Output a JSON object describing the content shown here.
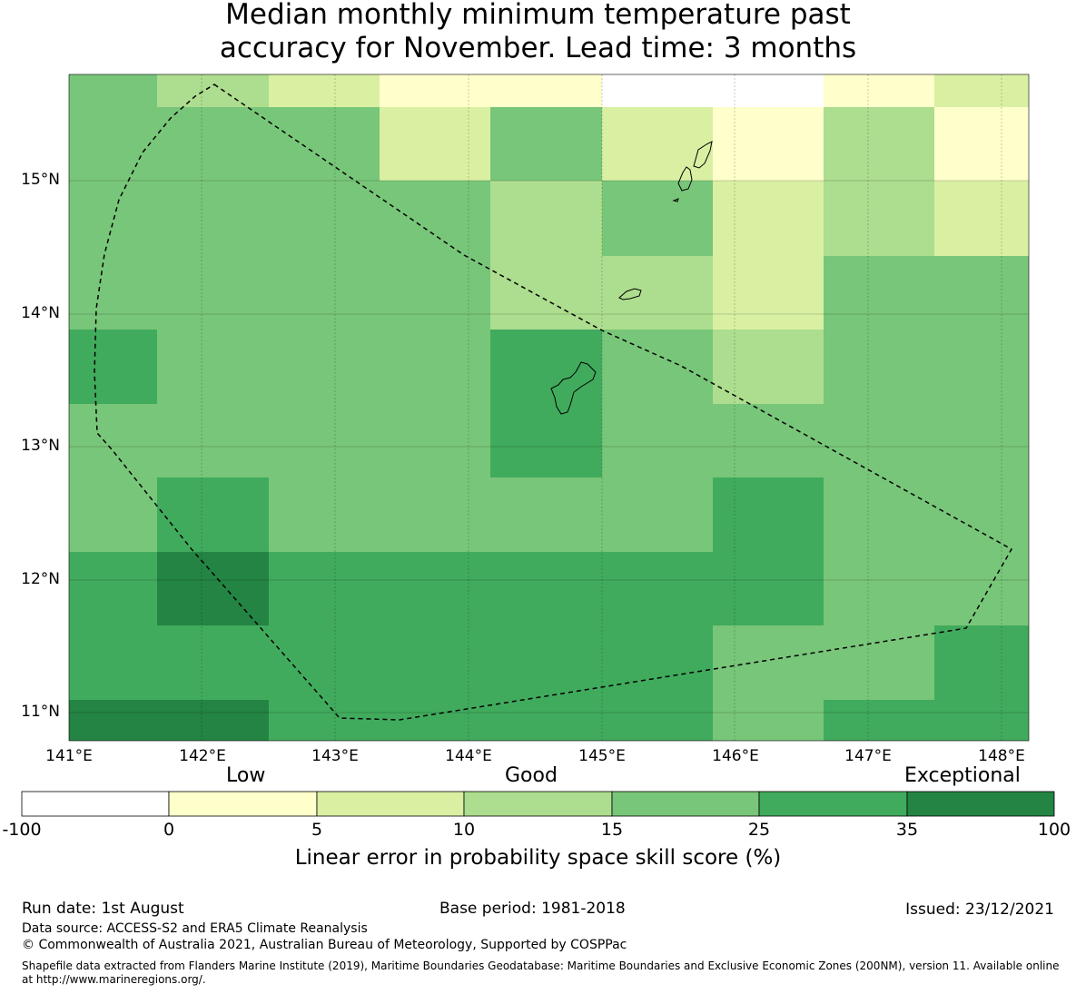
{
  "title_line1": "Median monthly minimum temperature past",
  "title_line2": "accuracy for November. Lead time: 3 months",
  "map": {
    "lon_ticks": [
      "141°E",
      "142°E",
      "143°E",
      "144°E",
      "145°E",
      "146°E",
      "147°E",
      "148°E"
    ],
    "lat_ticks": [
      "15°N",
      "14°N",
      "13°N",
      "12°N",
      "11°N"
    ],
    "grid_rows": [
      [
        4,
        3,
        2,
        1,
        1,
        0,
        0,
        1,
        2
      ],
      [
        4,
        4,
        4,
        2,
        4,
        2,
        1,
        3,
        1
      ],
      [
        4,
        4,
        4,
        4,
        3,
        4,
        2,
        3,
        2
      ],
      [
        4,
        4,
        4,
        4,
        3,
        3,
        2,
        4,
        4
      ],
      [
        5,
        4,
        4,
        4,
        5,
        4,
        3,
        4,
        4
      ],
      [
        4,
        4,
        4,
        4,
        5,
        4,
        4,
        4,
        4
      ],
      [
        4,
        5,
        4,
        4,
        4,
        4,
        5,
        4,
        4
      ],
      [
        5,
        6,
        5,
        5,
        5,
        5,
        5,
        4,
        4
      ],
      [
        5,
        5,
        5,
        5,
        5,
        5,
        4,
        4,
        5
      ],
      [
        6,
        6,
        5,
        5,
        5,
        5,
        4,
        5,
        5
      ]
    ]
  },
  "legend": {
    "band_low": "Low",
    "band_good": "Good",
    "band_exceptional": "Exceptional",
    "ticks": [
      "-100",
      "0",
      "5",
      "10",
      "15",
      "25",
      "35",
      "100"
    ],
    "colors": [
      "#ffffff",
      "#ffffcc",
      "#d9f0a3",
      "#addd8e",
      "#78c679",
      "#41ab5d",
      "#238443"
    ],
    "title": "Linear error in probability space skill score (%)"
  },
  "footer": {
    "run_date": "Run date: 1st August",
    "base_period": "Base period: 1981-2018",
    "issued": "Issued: 23/12/2021",
    "data_source": "Data source: ACCESS-S2 and ERA5 Climate Reanalysis",
    "copyright": "© Commonwealth of Australia 2021, Australian Bureau of Meteorology, Supported by COSPPac",
    "shapefile_line1": "Shapefile data extracted from Flanders Marine Institute (2019), Maritime Boundaries Geodatabase: Maritime Boundaries and Exclusive Economic Zones (200NM), version 11. Available online",
    "shapefile_line2": "at http://www.marineregions.org/."
  }
}
